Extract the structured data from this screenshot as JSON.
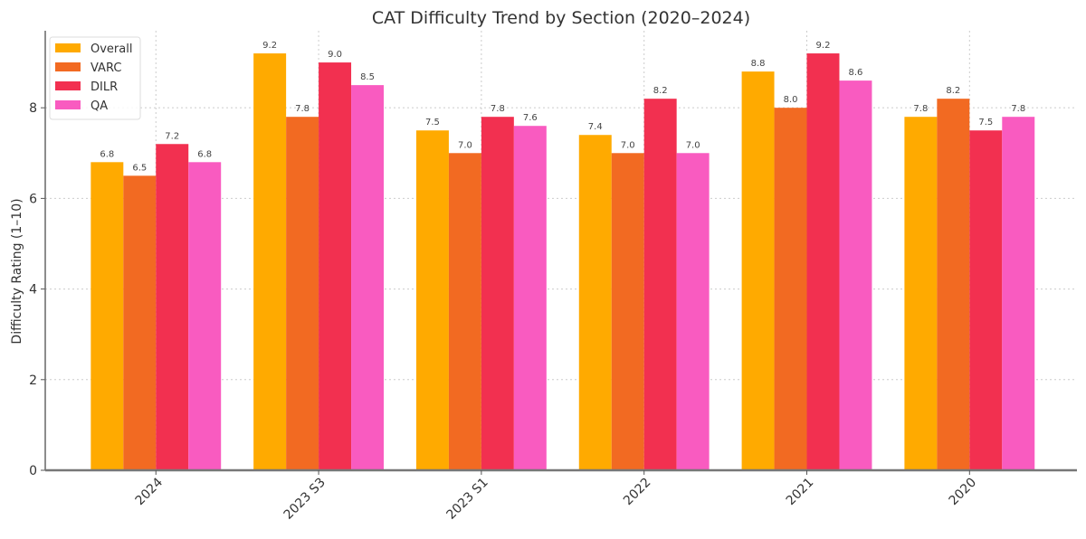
{
  "chart_data": {
    "type": "bar",
    "title": "CAT Difficulty Trend by Section (2020–2024)",
    "xlabel": "",
    "ylabel": "Difficulty Rating (1–10)",
    "categories": [
      "2024",
      "2023 S3",
      "2023 S1",
      "2022",
      "2021",
      "2020"
    ],
    "series": [
      {
        "name": "Overall",
        "color": "#FFAA00",
        "values": [
          6.8,
          9.2,
          7.5,
          7.4,
          8.8,
          7.8
        ]
      },
      {
        "name": "VARC",
        "color": "#F26A22",
        "values": [
          6.5,
          7.8,
          7.0,
          7.0,
          8.0,
          8.2
        ]
      },
      {
        "name": "DILR",
        "color": "#F23050",
        "values": [
          7.2,
          9.0,
          7.8,
          8.2,
          9.2,
          7.5
        ]
      },
      {
        "name": "QA",
        "color": "#F95BC0",
        "values": [
          6.8,
          8.5,
          7.6,
          7.0,
          8.6,
          7.8
        ]
      }
    ],
    "ylim": [
      0,
      9.7
    ],
    "yticks": [
      "0",
      "2",
      "4",
      "6",
      "8"
    ],
    "grid": true,
    "legend_position": "top-left",
    "data_labels": true
  }
}
